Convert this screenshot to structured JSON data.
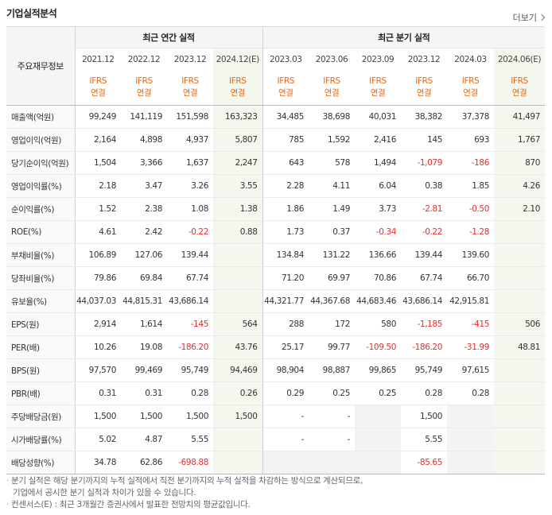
{
  "title": "기업실적분석",
  "more_label": "더보기",
  "corner_label": "주요재무정보",
  "groups": {
    "annual": "최근 연간 실적",
    "quarter": "최근 분기 실적"
  },
  "periods": [
    "2021.12",
    "2022.12",
    "2023.12",
    "2024.12(E)",
    "2023.03",
    "2023.06",
    "2023.09",
    "2023.12",
    "2024.03",
    "2024.06(E)"
  ],
  "basis_top": "IFRS",
  "basis_bottom": "연결",
  "rows": [
    {
      "label": "매출액(억원)",
      "values": [
        "99,249",
        "141,119",
        "151,598",
        "163,323",
        "34,485",
        "38,698",
        "40,031",
        "38,382",
        "37,378",
        "41,497"
      ]
    },
    {
      "label": "영업이익(억원)",
      "values": [
        "2,164",
        "4,898",
        "4,937",
        "5,807",
        "785",
        "1,592",
        "2,416",
        "145",
        "693",
        "1,767"
      ]
    },
    {
      "label": "당기순이익(억원)",
      "values": [
        "1,504",
        "3,366",
        "1,637",
        "2,247",
        "643",
        "578",
        "1,494",
        "-1,079",
        "-186",
        "870"
      ]
    },
    {
      "label": "영업이익률(%)",
      "values": [
        "2.18",
        "3.47",
        "3.26",
        "3.55",
        "2.28",
        "4.11",
        "6.04",
        "0.38",
        "1.85",
        "4.26"
      ]
    },
    {
      "label": "순이익률(%)",
      "values": [
        "1.52",
        "2.38",
        "1.08",
        "1.38",
        "1.86",
        "1.49",
        "3.73",
        "-2.81",
        "-0.50",
        "2.10"
      ]
    },
    {
      "label": "ROE(%)",
      "values": [
        "4.61",
        "2.42",
        "-0.22",
        "0.88",
        "1.73",
        "0.37",
        "-0.34",
        "-0.22",
        "-1.28",
        ""
      ]
    },
    {
      "label": "부채비율(%)",
      "values": [
        "106.89",
        "127.06",
        "139.44",
        "",
        "134.84",
        "131.22",
        "136.66",
        "139.44",
        "139.60",
        ""
      ]
    },
    {
      "label": "당좌비율(%)",
      "values": [
        "79.86",
        "69.84",
        "67.74",
        "",
        "71.20",
        "69.97",
        "70.86",
        "67.74",
        "66.70",
        ""
      ]
    },
    {
      "label": "유보율(%)",
      "values": [
        "44,037.03",
        "44,815.31",
        "43,686.14",
        "",
        "44,321.77",
        "44,367.68",
        "44,683.46",
        "43,686.14",
        "42,915.81",
        ""
      ]
    },
    {
      "label": "EPS(원)",
      "values": [
        "2,914",
        "1,614",
        "-145",
        "564",
        "288",
        "172",
        "580",
        "-1,185",
        "-415",
        "506"
      ]
    },
    {
      "label": "PER(배)",
      "values": [
        "10.26",
        "19.08",
        "-186.20",
        "43.76",
        "25.17",
        "99.77",
        "-109.50",
        "-186.20",
        "-31.99",
        "48.81"
      ]
    },
    {
      "label": "BPS(원)",
      "values": [
        "97,570",
        "99,469",
        "95,749",
        "94,469",
        "98,904",
        "98,887",
        "99,865",
        "95,749",
        "97,615",
        ""
      ]
    },
    {
      "label": "PBR(배)",
      "values": [
        "0.31",
        "0.31",
        "0.28",
        "0.26",
        "0.29",
        "0.25",
        "0.25",
        "0.28",
        "0.28",
        ""
      ]
    },
    {
      "label": "주당배당금(원)",
      "values": [
        "1,500",
        "1,500",
        "1,500",
        "1,500",
        "-",
        "-",
        "",
        "1,500",
        "",
        ""
      ]
    },
    {
      "label": "시가배당률(%)",
      "values": [
        "5.02",
        "4.87",
        "5.55",
        "",
        "-",
        "-",
        "",
        "5.55",
        "",
        ""
      ]
    },
    {
      "label": "배당성향(%)",
      "values": [
        "34.78",
        "62.86",
        "-698.88",
        "",
        "",
        "",
        "",
        "-85.65",
        "",
        ""
      ]
    }
  ],
  "notes": [
    "분기 실적은 해당 분기까지의 누적 실적에서 직전 분기까지의 누적 실적을 차감하는 방식으로 계산되므로,",
    "기업에서 공시한 분기 실적과 차이가 있을 수 있습니다.",
    "컨센서스(E) : 최근 3개월간 증권사에서 발표한 전망치의 평균값입니다."
  ]
}
